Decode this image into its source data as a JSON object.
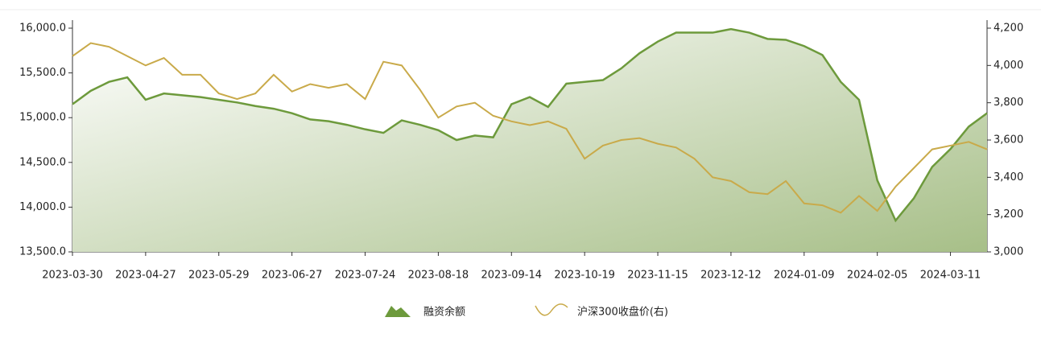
{
  "chart_data": {
    "type": "area-line",
    "categories": [
      "2023-03-30",
      null,
      null,
      null,
      "2023-04-27",
      null,
      null,
      null,
      "2023-05-29",
      null,
      null,
      null,
      "2023-06-27",
      null,
      null,
      null,
      "2023-07-24",
      null,
      null,
      null,
      "2023-08-18",
      null,
      null,
      null,
      "2023-09-14",
      null,
      null,
      null,
      "2023-10-19",
      null,
      null,
      null,
      "2023-11-15",
      null,
      null,
      null,
      "2023-12-12",
      null,
      null,
      null,
      "2024-01-09",
      null,
      null,
      null,
      "2024-02-05",
      null,
      null,
      null,
      "2024-03-11",
      null,
      null
    ],
    "series": [
      {
        "name": "融资余额",
        "color": "#6d9a3c",
        "kind": "area",
        "values": [
          15150,
          15300,
          15400,
          15450,
          15200,
          15270,
          15250,
          15230,
          15200,
          15170,
          15130,
          15100,
          15050,
          14980,
          14960,
          14920,
          14870,
          14830,
          14970,
          14920,
          14860,
          14750,
          14800,
          14780,
          15150,
          15230,
          15120,
          15380,
          15400,
          15420,
          15550,
          15720,
          15850,
          15950,
          15950,
          15950,
          15990,
          15950,
          15880,
          15870,
          15800,
          15700,
          15400,
          15200,
          14300,
          13850,
          14100,
          14450,
          14650,
          14900,
          15050
        ]
      },
      {
        "name": "沪深300收盘价(右)",
        "color": "#c9aa4a",
        "kind": "line",
        "axis": "y2",
        "values": [
          4050,
          4120,
          4100,
          4050,
          4000,
          4040,
          3950,
          3950,
          3850,
          3820,
          3850,
          3950,
          3860,
          3900,
          3880,
          3900,
          3820,
          4020,
          4000,
          3870,
          3720,
          3780,
          3800,
          3730,
          3700,
          3680,
          3700,
          3660,
          3500,
          3570,
          3600,
          3610,
          3580,
          3560,
          3500,
          3400,
          3380,
          3320,
          3310,
          3380,
          3260,
          3250,
          3210,
          3300,
          3220,
          3350,
          3450,
          3550,
          3570,
          3590,
          3550
        ]
      }
    ],
    "ylim": [
      13500,
      16000
    ],
    "yticks": [
      {
        "value": 13500,
        "label": "13,500.0"
      },
      {
        "value": 14000,
        "label": "14,000.0"
      },
      {
        "value": 14500,
        "label": "14,500.0"
      },
      {
        "value": 15000,
        "label": "15,000.0"
      },
      {
        "value": 15500,
        "label": "15,500.0"
      },
      {
        "value": 16000,
        "label": "16,000.0"
      }
    ],
    "y2lim": [
      3000,
      4200
    ],
    "y2ticks": [
      {
        "value": 3000,
        "label": "3,000"
      },
      {
        "value": 3200,
        "label": "3,200"
      },
      {
        "value": 3400,
        "label": "3,400"
      },
      {
        "value": 3600,
        "label": "3,600"
      },
      {
        "value": 3800,
        "label": "3,800"
      },
      {
        "value": 4000,
        "label": "4,000"
      },
      {
        "value": 4200,
        "label": "4,200"
      }
    ],
    "legend": "bottom"
  }
}
